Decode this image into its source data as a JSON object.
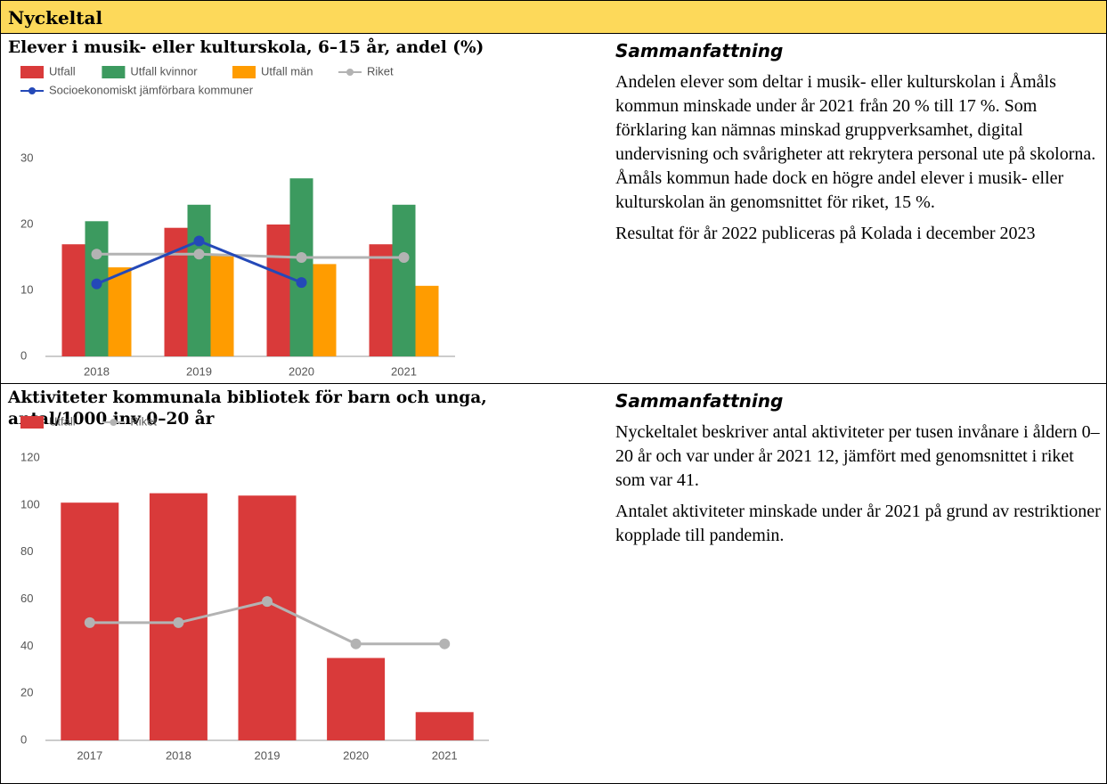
{
  "header": {
    "title": "Nyckeltal"
  },
  "chart_data": [
    {
      "type": "bar",
      "title": "Elever i musik- eller kulturskola, 6–15 år, andel (%)",
      "categories": [
        "2018",
        "2019",
        "2020",
        "2021"
      ],
      "series": [
        {
          "name": "Utfall",
          "type": "bar",
          "color": "#d93a3a",
          "values": [
            17,
            19.5,
            20,
            17
          ]
        },
        {
          "name": "Utfall kvinnor",
          "type": "bar",
          "color": "#3c9a5f",
          "values": [
            20.5,
            23,
            27,
            23
          ]
        },
        {
          "name": "Utfall män",
          "type": "bar",
          "color": "#ff9c00",
          "values": [
            13.5,
            15.5,
            14,
            10.7
          ]
        },
        {
          "name": "Riket",
          "type": "line",
          "color": "#b3b3b3",
          "values": [
            15.5,
            15.5,
            15,
            15
          ]
        },
        {
          "name": "Socioekonomiskt jämförbara kommuner",
          "type": "line",
          "color": "#2449b8",
          "values": [
            11,
            17.5,
            11.2,
            null
          ]
        }
      ],
      "ylim": [
        0,
        30
      ],
      "yticks": [
        0,
        10,
        20,
        30
      ],
      "legend": "top"
    },
    {
      "type": "bar",
      "title": "Aktiviteter kommunala bibliotek för barn och unga, antal/1000 inv 0–20 år",
      "categories": [
        "2017",
        "2018",
        "2019",
        "2020",
        "2021"
      ],
      "series": [
        {
          "name": "Utfall",
          "type": "bar",
          "color": "#d93a3a",
          "values": [
            101,
            105,
            104,
            35,
            12
          ]
        },
        {
          "name": "Riket",
          "type": "line",
          "color": "#b3b3b3",
          "values": [
            50,
            50,
            59,
            41,
            41
          ]
        }
      ],
      "ylim": [
        0,
        120
      ],
      "yticks": [
        0,
        20,
        40,
        60,
        80,
        100,
        120
      ],
      "legend": "top"
    }
  ],
  "sections": [
    {
      "summary_title": "Sammanfattning",
      "paragraphs": [
        "Andelen elever som deltar i musik- eller kulturskolan i Åmåls kommun minskade under år 2021 från 20 % till 17 %. Som förklaring kan nämnas minskad gruppverksamhet, digital undervisning och svårigheter att rekrytera personal ute på skolorna. Åmåls kommun hade dock en högre andel elever i musik- eller kulturskolan än genomsnittet för riket, 15 %.",
        "Resultat för år 2022 publiceras på Kolada i december 2023"
      ]
    },
    {
      "summary_title": "Sammanfattning",
      "paragraphs": [
        "Nyckeltalet beskriver antal aktiviteter per tusen invånare i åldern 0–20 år och var under år 2021 12, jämfört med genomsnittet i riket som var 41.",
        "Antalet aktiviteter minskade under år 2021 på grund av restriktioner kopplade till pandemin."
      ]
    }
  ]
}
